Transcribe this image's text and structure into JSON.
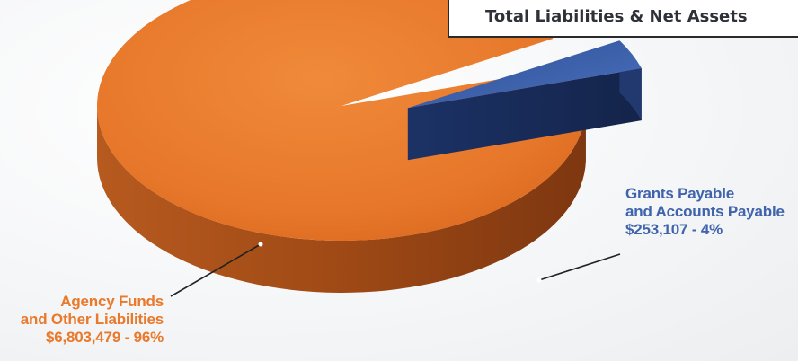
{
  "chart_data": {
    "type": "pie",
    "title": "Total Liabilities & Net Assets",
    "slices": [
      {
        "name_line1": "Agency Funds",
        "name_line2": "and Other Liabilities",
        "value_text": "$6,803,479 - 96%",
        "value": 6803479,
        "percent": 96,
        "color": "#e9792b",
        "side_color": "#a9501a"
      },
      {
        "name_line1": "Grants Payable",
        "name_line2": "and Accounts Payable",
        "value_text": "$253,107 - 4%",
        "value": 253107,
        "percent": 4,
        "color": "#3f63ac",
        "side_color": "#1b2f5c"
      }
    ]
  }
}
